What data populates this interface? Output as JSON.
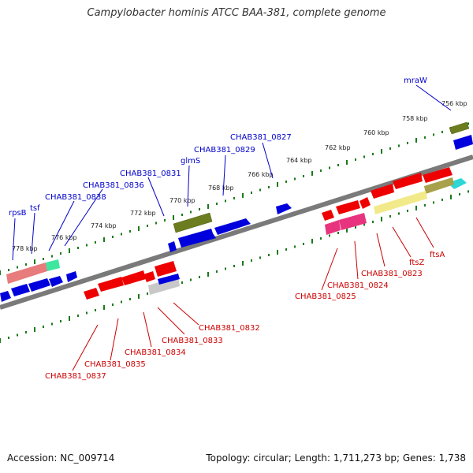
{
  "title": "Campylobacter hominis ATCC BAA-381, complete genome",
  "footer": {
    "accession": "Accession: NC_009714",
    "summary": "Topology: circular; Length: 1,711,273 bp; Genes: 1,738"
  },
  "colors": {
    "forward_label": "#0000cc",
    "reverse_label": "#cc0000",
    "forward_gene": "#0000dd",
    "reverse_gene": "#ee0000",
    "ruler_tick": "#1a7a1a",
    "backbone": "#777777"
  },
  "scale_labels": [
    "756 kbp",
    "758 kbp",
    "760 kbp",
    "762 kbp",
    "764 kbp",
    "766 kbp",
    "768 kbp",
    "770 kbp",
    "772 kbp",
    "774 kbp",
    "776 kbp",
    "778 kbp"
  ],
  "forward_labels": [
    "mraW",
    "CHAB381_0827",
    "CHAB381_0829",
    "glmS",
    "CHAB381_0831",
    "CHAB381_0836",
    "CHAB381_0838",
    "tsf",
    "rpsB"
  ],
  "reverse_labels": [
    "ftsA",
    "ftsZ",
    "CHAB381_0823",
    "CHAB381_0824",
    "CHAB381_0825",
    "CHAB381_0832",
    "CHAB381_0833",
    "CHAB381_0834",
    "CHAB381_0835",
    "CHAB381_0837"
  ]
}
